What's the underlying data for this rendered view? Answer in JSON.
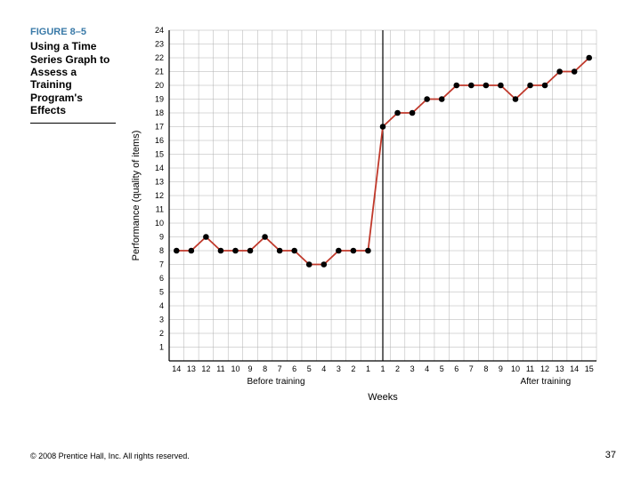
{
  "figure": {
    "number": "FIGURE 8–5",
    "title": "Using a Time Series Graph to Assess a Training Program's Effects"
  },
  "copyright": "© 2008 Prentice Hall, Inc. All rights reserved.",
  "page_number": "37",
  "chart": {
    "type": "line",
    "background_color": "#ffffff",
    "grid_color": "#b0b0b0",
    "grid_width": 0.5,
    "axis_color": "#000000",
    "axis_width": 1.2,
    "line_color": "#c0392b",
    "line_width": 1.8,
    "marker_style": "circle",
    "marker_radius": 2.8,
    "marker_fill": "#000000",
    "marker_stroke": "#000000",
    "ylabel": "Performance (quality of items)",
    "xlabel": "Weeks",
    "ylim": [
      0,
      24
    ],
    "ytick_step": 1,
    "ytick_labels": [
      1,
      2,
      3,
      4,
      5,
      6,
      7,
      8,
      9,
      10,
      11,
      12,
      13,
      14,
      15,
      16,
      17,
      18,
      19,
      20,
      21,
      22,
      23,
      24
    ],
    "x_categories_before": [
      14,
      13,
      12,
      11,
      10,
      9,
      8,
      7,
      6,
      5,
      4,
      3,
      2,
      1
    ],
    "x_categories_after": [
      1,
      2,
      3,
      4,
      5,
      6,
      7,
      8,
      9,
      10,
      11,
      12,
      13,
      14,
      15
    ],
    "before_label": "Before training",
    "after_label": "After training",
    "x_positions": [
      1,
      2,
      3,
      4,
      5,
      6,
      7,
      8,
      9,
      10,
      11,
      12,
      13,
      14,
      15,
      16,
      17,
      18,
      19,
      20,
      21,
      22,
      23,
      24,
      25,
      26,
      27,
      28,
      29
    ],
    "y_values": [
      8,
      8,
      9,
      8,
      8,
      8,
      9,
      8,
      8,
      7,
      7,
      8,
      8,
      8,
      17,
      18,
      18,
      19,
      19,
      20,
      20,
      20,
      20,
      19,
      20,
      20,
      21,
      21,
      22
    ],
    "divider_x": 14.5,
    "tick_fontsize": 9,
    "label_fontsize": 11
  }
}
